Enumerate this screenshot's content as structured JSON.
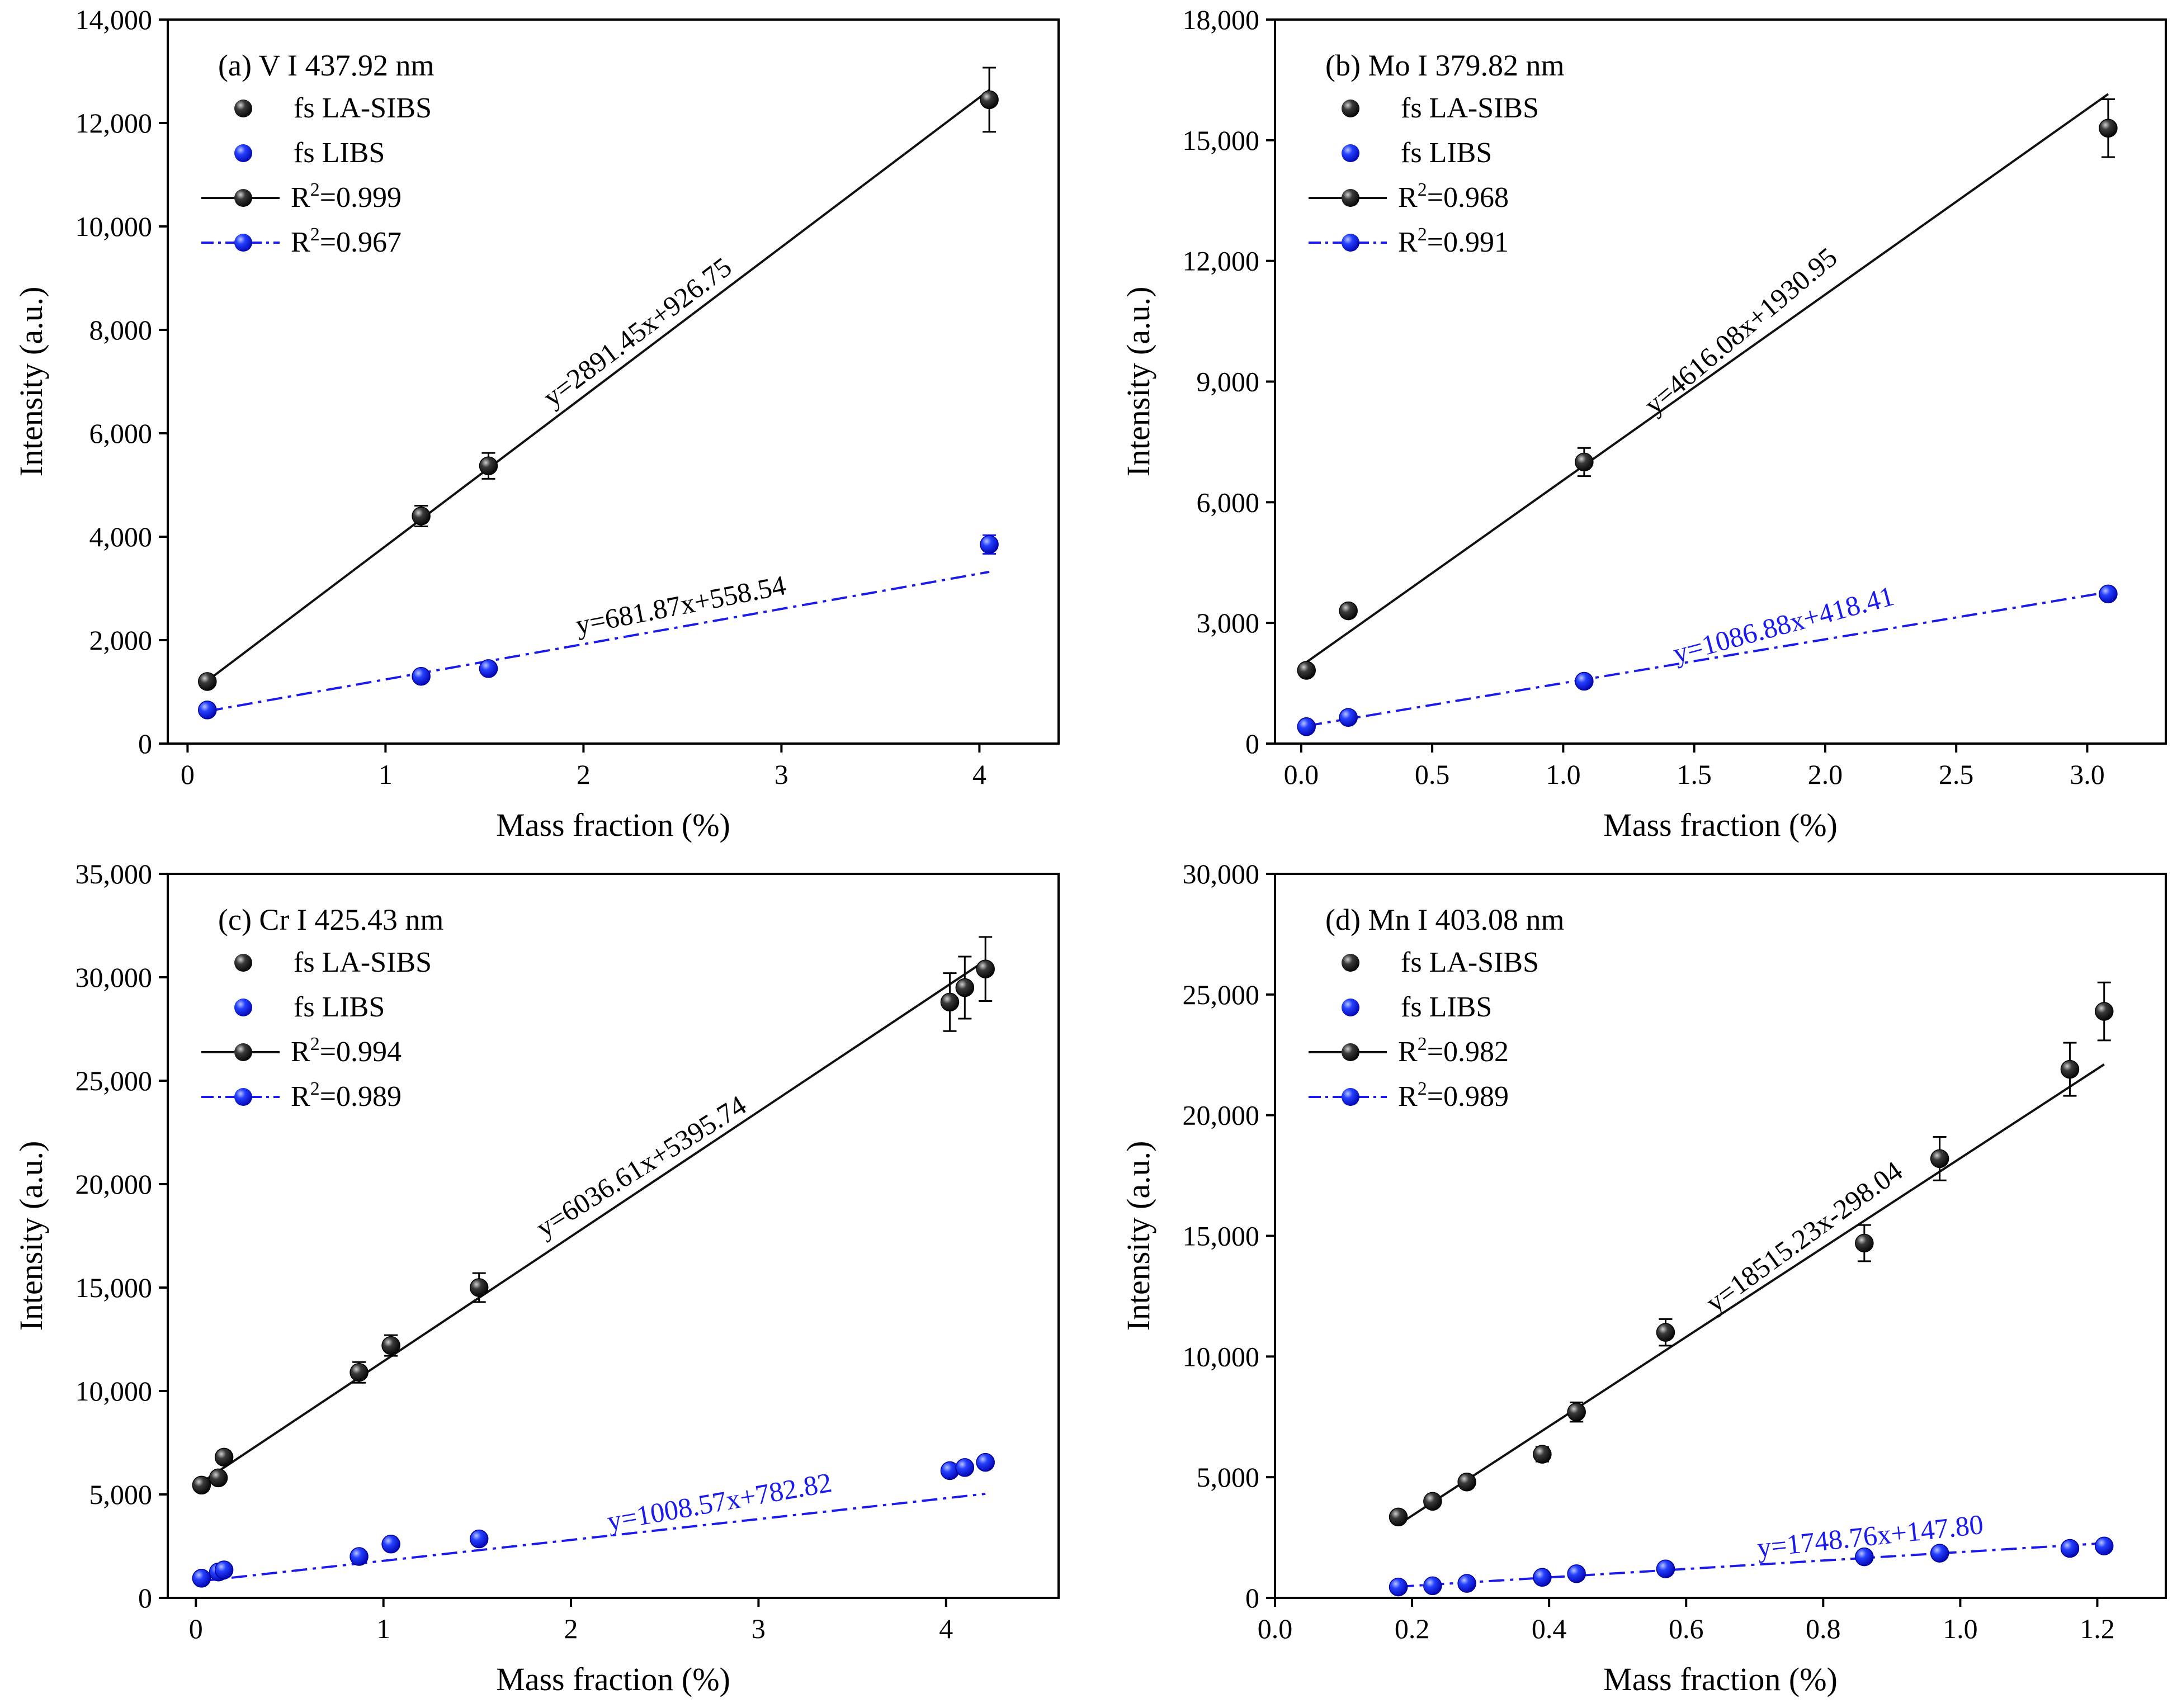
{
  "figure": {
    "colors": {
      "la_sibs": "#111111",
      "libs": "#1a1aee",
      "axis": "#000000"
    },
    "legend_labels": {
      "la_sibs": "fs LA-SIBS",
      "libs": "fs LIBS"
    }
  },
  "chart_data": [
    {
      "type": "scatter",
      "panel": "a",
      "title": "(a) V I 437.92 nm",
      "xlabel": "Mass fraction (%)",
      "ylabel": "Intensity (a.u.)",
      "xlim": [
        -0.1,
        4.4
      ],
      "ylim": [
        0,
        14000
      ],
      "xticks": [
        0,
        1,
        2,
        3,
        4
      ],
      "xtick_labels": [
        "0",
        "1",
        "2",
        "3",
        "4"
      ],
      "yticks": [
        0,
        2000,
        4000,
        6000,
        8000,
        10000,
        12000,
        14000
      ],
      "ytick_labels": [
        "0",
        "2,000",
        "4,000",
        "6,000",
        "8,000",
        "10,000",
        "12,000",
        "14,000"
      ],
      "series": [
        {
          "name": "fs LA-SIBS",
          "x": [
            0.1,
            1.18,
            1.52,
            4.05
          ],
          "y": [
            1200,
            4400,
            5370,
            12450
          ],
          "yerr": [
            80,
            200,
            250,
            620
          ],
          "fit": {
            "slope": 2891.45,
            "intercept": 926.75,
            "equation": "y=2891.45x+926.75",
            "r2_label": "0.999",
            "eq_x": 2.3,
            "eq_rot": -37
          }
        },
        {
          "name": "fs LIBS",
          "x": [
            0.1,
            1.18,
            1.52,
            4.05
          ],
          "y": [
            650,
            1300,
            1450,
            3850
          ],
          "yerr": [
            60,
            70,
            80,
            180
          ],
          "fit": {
            "slope": 681.87,
            "intercept": 558.54,
            "equation": "y=681.87x+558.54",
            "r2_label": "0.967",
            "eq_x": 2.5,
            "eq_rot": -11
          }
        }
      ]
    },
    {
      "type": "scatter",
      "panel": "b",
      "title": "(b) Mo I 379.82 nm",
      "xlabel": "Mass fraction (%)",
      "ylabel": "Intensity (a.u.)",
      "xlim": [
        -0.1,
        3.3
      ],
      "ylim": [
        0,
        18000
      ],
      "xticks": [
        0.0,
        0.5,
        1.0,
        1.5,
        2.0,
        2.5,
        3.0
      ],
      "xtick_labels": [
        "0.0",
        "0.5",
        "1.0",
        "1.5",
        "2.0",
        "2.5",
        "3.0"
      ],
      "yticks": [
        0,
        3000,
        6000,
        9000,
        12000,
        15000,
        18000
      ],
      "ytick_labels": [
        "0",
        "3,000",
        "6,000",
        "9,000",
        "12,000",
        "15,000",
        "18,000"
      ],
      "series": [
        {
          "name": "fs LA-SIBS",
          "x": [
            0.02,
            0.18,
            1.08,
            3.08
          ],
          "y": [
            1820,
            3300,
            7000,
            15300
          ],
          "yerr": [
            100,
            150,
            350,
            720
          ],
          "fit": {
            "slope": 4616.08,
            "intercept": 1930.95,
            "equation": "y=4616.08x+1930.95",
            "r2_label": "0.968",
            "eq_x": 1.7,
            "eq_rot": -40
          }
        },
        {
          "name": "fs LIBS",
          "x": [
            0.02,
            0.18,
            1.08,
            3.08
          ],
          "y": [
            420,
            650,
            1550,
            3720
          ],
          "yerr": [
            50,
            60,
            80,
            120
          ],
          "fit": {
            "slope": 1086.88,
            "intercept": 418.41,
            "equation": "y=1086.88x+418.41",
            "r2_label": "0.991",
            "eq_x": 1.85,
            "eq_rot": -15
          }
        }
      ]
    },
    {
      "type": "scatter",
      "panel": "c",
      "title": "(c) Cr I 425.43 nm",
      "xlabel": "Mass fraction (%)",
      "ylabel": "Intensity (a.u.)",
      "xlim": [
        -0.15,
        4.6
      ],
      "ylim": [
        0,
        35000
      ],
      "xticks": [
        0,
        1,
        2,
        3,
        4
      ],
      "xtick_labels": [
        "0",
        "1",
        "2",
        "3",
        "4"
      ],
      "yticks": [
        0,
        5000,
        10000,
        15000,
        20000,
        25000,
        30000,
        35000
      ],
      "ytick_labels": [
        "0",
        "5,000",
        "10,000",
        "15,000",
        "20,000",
        "25,000",
        "30,000",
        "35,000"
      ],
      "series": [
        {
          "name": "fs LA-SIBS",
          "x": [
            0.03,
            0.12,
            0.15,
            0.87,
            1.04,
            1.51,
            4.02,
            4.1,
            4.21
          ],
          "y": [
            5450,
            5800,
            6800,
            10900,
            12200,
            15000,
            28800,
            29500,
            30400
          ],
          "yerr": [
            200,
            250,
            300,
            500,
            500,
            700,
            1400,
            1500,
            1550
          ],
          "fit": {
            "slope": 6036.61,
            "intercept": 5395.74,
            "equation": "y=6036.61x+5395.74",
            "r2_label": "0.994",
            "eq_x": 2.4,
            "eq_rot": -32
          }
        },
        {
          "name": "fs LIBS",
          "x": [
            0.03,
            0.12,
            0.15,
            0.87,
            1.04,
            1.51,
            4.02,
            4.1,
            4.21
          ],
          "y": [
            950,
            1250,
            1350,
            2000,
            2600,
            2850,
            6150,
            6300,
            6550
          ],
          "yerr": [
            60,
            70,
            80,
            100,
            110,
            120,
            180,
            190,
            200
          ],
          "fit": {
            "slope": 1008.57,
            "intercept": 782.82,
            "equation": "y=1008.57x+782.82",
            "r2_label": "0.989",
            "eq_x": 2.8,
            "eq_rot": -10
          }
        }
      ]
    },
    {
      "type": "scatter",
      "panel": "d",
      "title": "(d) Mn I 403.08 nm",
      "xlabel": "Mass fraction (%)",
      "ylabel": "Intensity (a.u.)",
      "xlim": [
        0.0,
        1.3
      ],
      "ylim": [
        0,
        30000
      ],
      "xticks": [
        0.0,
        0.2,
        0.4,
        0.6,
        0.8,
        1.0,
        1.2
      ],
      "xtick_labels": [
        "0.0",
        "0.2",
        "0.4",
        "0.6",
        "0.8",
        "1.0",
        "1.2"
      ],
      "yticks": [
        0,
        5000,
        10000,
        15000,
        20000,
        25000,
        30000
      ],
      "ytick_labels": [
        "0",
        "5,000",
        "10,000",
        "15,000",
        "20,000",
        "25,000",
        "30,000"
      ],
      "series": [
        {
          "name": "fs LA-SIBS",
          "x": [
            0.18,
            0.23,
            0.28,
            0.39,
            0.44,
            0.57,
            0.86,
            0.97,
            1.16,
            1.21
          ],
          "y": [
            3350,
            4000,
            4800,
            5950,
            7700,
            11000,
            14700,
            18200,
            21900,
            24300
          ],
          "yerr": [
            150,
            200,
            250,
            300,
            400,
            550,
            750,
            900,
            1100,
            1200
          ],
          "fit": {
            "slope": 18515.23,
            "intercept": -298.04,
            "equation": "y=18515.23x-298.04",
            "r2_label": "0.982",
            "eq_x": 0.78,
            "eq_rot": -36
          }
        },
        {
          "name": "fs LIBS",
          "x": [
            0.18,
            0.23,
            0.28,
            0.39,
            0.44,
            0.57,
            0.86,
            0.97,
            1.16,
            1.21
          ],
          "y": [
            450,
            500,
            600,
            850,
            1000,
            1200,
            1700,
            1850,
            2050,
            2150
          ],
          "yerr": [
            40,
            40,
            50,
            60,
            60,
            70,
            80,
            90,
            100,
            100
          ],
          "fit": {
            "slope": 1748.76,
            "intercept": 147.8,
            "equation": "y=1748.76x+147.80",
            "r2_label": "0.989",
            "eq_x": 0.87,
            "eq_rot": -6
          }
        }
      ]
    }
  ]
}
